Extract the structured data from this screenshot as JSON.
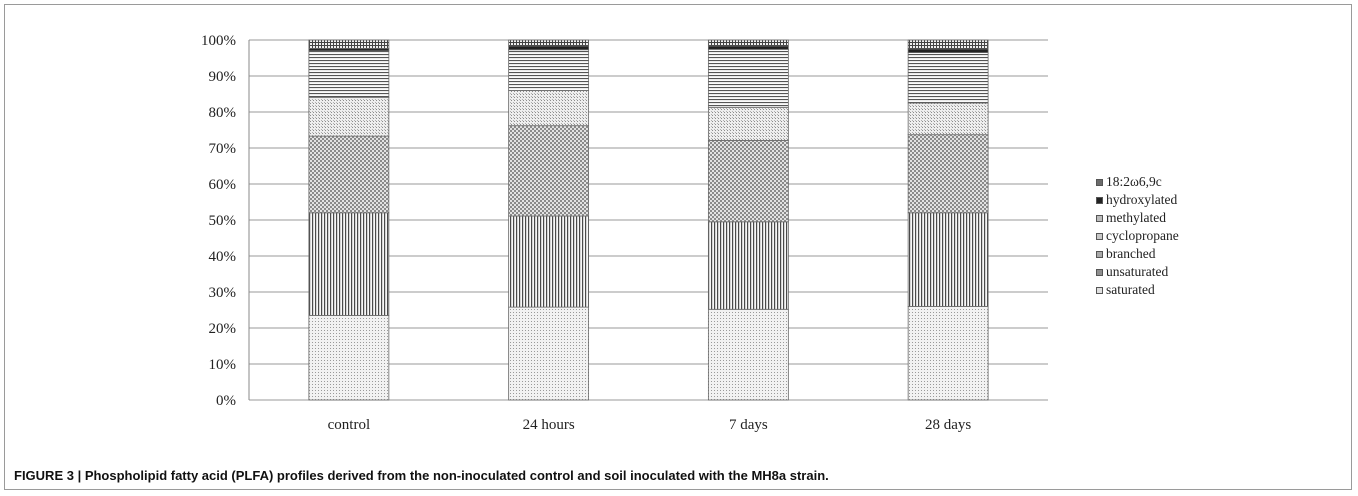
{
  "caption": "FIGURE 3 | Phospholipid fatty acid (PLFA) profiles derived from the non-inoculated control and soil inoculated with the MH8a strain.",
  "chart_data": {
    "type": "bar",
    "stacked": true,
    "percent_scale": true,
    "categories": [
      "control",
      "24 hours",
      "7 days",
      "28 days"
    ],
    "y_ticks": [
      "0%",
      "10%",
      "20%",
      "30%",
      "40%",
      "50%",
      "60%",
      "70%",
      "80%",
      "90%",
      "100%"
    ],
    "ylim": [
      0,
      100
    ],
    "grid": true,
    "legend_position": "right",
    "series": [
      {
        "name": "saturated",
        "values": [
          23.5,
          25.8,
          25.2,
          26.0
        ],
        "pattern": "dots",
        "color": "#e6e6e6"
      },
      {
        "name": "unsaturated",
        "values": [
          28.5,
          25.3,
          24.3,
          26.0
        ],
        "pattern": "vertical",
        "color": "#bdbdbd"
      },
      {
        "name": "branched",
        "values": [
          21.3,
          25.1,
          22.6,
          21.7
        ],
        "pattern": "checker",
        "color": "#cfcfcf"
      },
      {
        "name": "cyclopropane",
        "values": [
          10.7,
          9.8,
          9.2,
          8.8
        ],
        "pattern": "fine",
        "color": "#d6d6d6"
      },
      {
        "name": "methylated",
        "values": [
          13.0,
          11.3,
          16.1,
          14.0
        ],
        "pattern": "horizontal",
        "color": "#c4c4c4"
      },
      {
        "name": "hydroxylated",
        "values": [
          0.6,
          1.0,
          0.9,
          1.0
        ],
        "pattern": "solid",
        "color": "#222222"
      },
      {
        "name": "18:2ω6,9c",
        "values": [
          2.4,
          1.7,
          1.7,
          2.5
        ],
        "pattern": "grid",
        "color": "#9a9a9a"
      }
    ]
  }
}
